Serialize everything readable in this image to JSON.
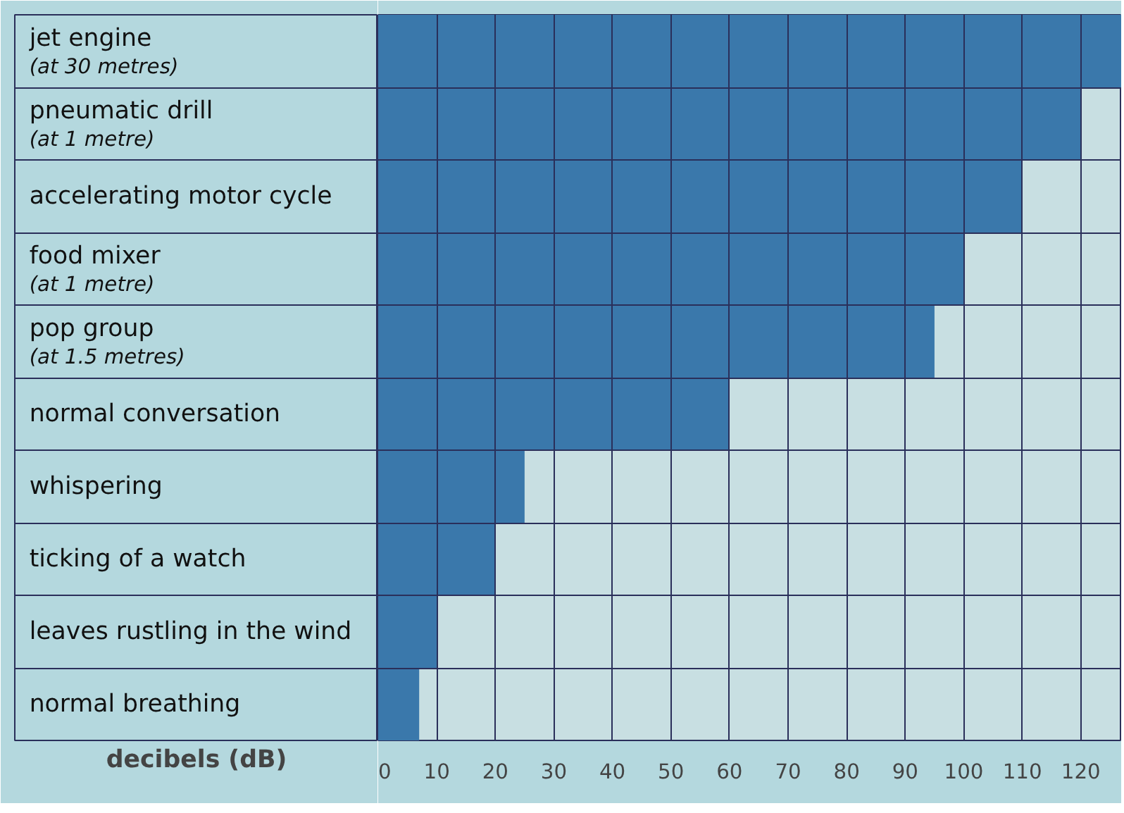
{
  "chart_data": {
    "type": "bar",
    "orientation": "horizontal",
    "xlabel": "decibels (dB)",
    "categories": [
      "jet engine\n(at 30 metres)",
      "pneumatic drill\n(at 1 metre)",
      "accelerating motor cycle",
      "food mixer\n(at 1 metre)",
      "pop group\n(at 1.5 metres)",
      "normal conversation",
      "whispering",
      "ticking of a watch",
      "leaves rustling in the wind",
      "normal breathing"
    ],
    "values": [
      127,
      120,
      110,
      100,
      95,
      60,
      25,
      20,
      10,
      7
    ],
    "color": "#3a78ab",
    "xlim": [
      0,
      127
    ],
    "xticks": [
      0,
      10,
      20,
      30,
      40,
      50,
      60,
      70,
      80,
      90,
      100,
      110,
      120
    ],
    "grid": "x"
  }
}
